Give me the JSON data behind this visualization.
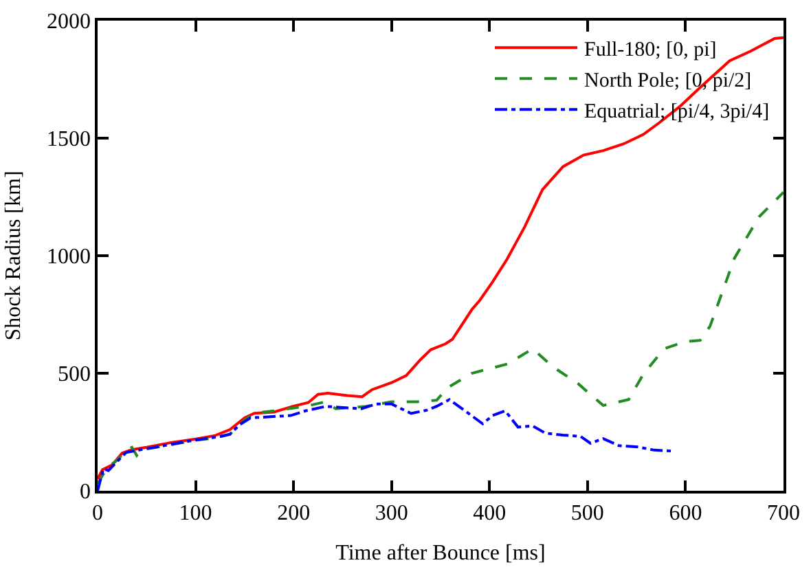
{
  "chart_data": {
    "type": "line",
    "xlabel": "Time after Bounce [ms]",
    "ylabel": "Shock Radius [km]",
    "xlim": [
      0,
      700
    ],
    "ylim": [
      0,
      2000
    ],
    "xticks": [
      0,
      100,
      200,
      300,
      400,
      500,
      600,
      700
    ],
    "yticks": [
      0,
      500,
      1000,
      1500,
      2000
    ],
    "legend": "top right",
    "marker": "none",
    "series": [
      {
        "name": "Full-180; [0, pi]",
        "color": "#ff0000",
        "line_style": "solid",
        "x": [
          0,
          5,
          15,
          25,
          35,
          50,
          75,
          100,
          120,
          135,
          150,
          160,
          180,
          200,
          215,
          225,
          235,
          255,
          270,
          280,
          300,
          315,
          330,
          340,
          355,
          362,
          382,
          390,
          403,
          418,
          436,
          454,
          475,
          496,
          516,
          537,
          557,
          573,
          594,
          614,
          645,
          666,
          691,
          700
        ],
        "values": [
          50,
          90,
          110,
          160,
          175,
          185,
          205,
          220,
          235,
          260,
          310,
          330,
          335,
          360,
          375,
          410,
          415,
          405,
          400,
          430,
          460,
          490,
          560,
          600,
          625,
          644,
          771,
          810,
          888,
          986,
          1124,
          1281,
          1379,
          1428,
          1447,
          1476,
          1516,
          1565,
          1634,
          1712,
          1829,
          1869,
          1924,
          1928
        ]
      },
      {
        "name": "North Pole; [0, pi/2]",
        "color": "#228b22",
        "line_style": "dashed",
        "x": [
          0,
          10,
          20,
          30,
          35,
          40,
          45,
          60,
          80,
          100,
          120,
          135,
          150,
          160,
          180,
          212,
          233,
          243,
          274,
          300,
          326,
          346,
          357,
          382,
          418,
          444,
          465,
          490,
          516,
          542,
          557,
          578,
          600,
          615,
          625,
          650,
          675,
          700
        ],
        "values": [
          30,
          100,
          130,
          175,
          185,
          150,
          175,
          185,
          200,
          215,
          225,
          240,
          300,
          330,
          340,
          359,
          379,
          349,
          359,
          379,
          379,
          385,
          438,
          500,
          539,
          604,
          526,
          457,
          363,
          388,
          496,
          604,
          635,
          640,
          700,
          990,
          1165,
          1270
        ]
      },
      {
        "name": "Equatrial; [pi/4, 3pi/4]",
        "color": "#0000ff",
        "line_style": "dashdot",
        "x": [
          0,
          6,
          11,
          29,
          42,
          68,
          94,
          125,
          135,
          145,
          156,
          197,
          212,
          233,
          269,
          284,
          300,
          320,
          336,
          346,
          359,
          375,
          393,
          403,
          416,
          429,
          444,
          457,
          475,
          493,
          503,
          516,
          532,
          552,
          568,
          586
        ],
        "values": [
          0,
          94,
          86,
          163,
          173,
          192,
          212,
          231,
          241,
          281,
          310,
          320,
          340,
          359,
          349,
          369,
          369,
          329,
          343,
          359,
          388,
          340,
          285,
          320,
          340,
          271,
          276,
          245,
          237,
          231,
          202,
          222,
          192,
          186,
          173,
          169
        ]
      }
    ]
  }
}
